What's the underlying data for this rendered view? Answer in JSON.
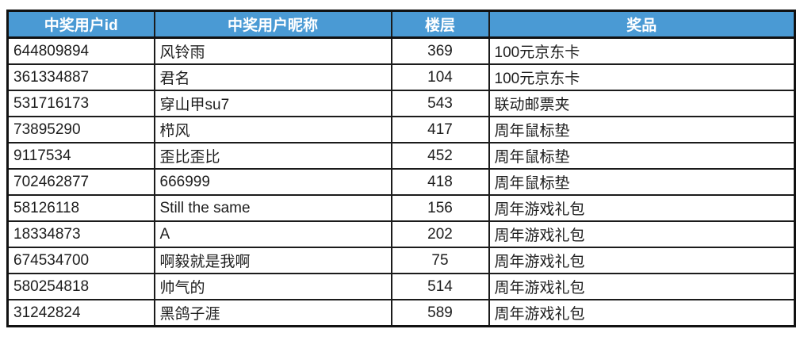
{
  "chart_data": {
    "type": "table",
    "title": "",
    "headers": [
      "中奖用户id",
      "中奖用户昵称",
      "楼层",
      "奖品"
    ],
    "rows": [
      [
        "644809894",
        "风铃雨",
        "369",
        "100元京东卡"
      ],
      [
        "361334887",
        "君名",
        "104",
        "100元京东卡"
      ],
      [
        "531716173",
        "穿山甲su7",
        "543",
        "联动邮票夹"
      ],
      [
        "73895290",
        "栉风",
        "417",
        "周年鼠标垫"
      ],
      [
        "9117534",
        "歪比歪比",
        "452",
        "周年鼠标垫"
      ],
      [
        "702462877",
        "666999",
        "418",
        "周年鼠标垫"
      ],
      [
        "58126118",
        "Still the same",
        "156",
        "周年游戏礼包"
      ],
      [
        "18334873",
        "A",
        "202",
        "周年游戏礼包"
      ],
      [
        "674534700",
        "啊毅就是我啊",
        "75",
        "周年游戏礼包"
      ],
      [
        "580254818",
        "帅气的",
        "514",
        "周年游戏礼包"
      ],
      [
        "31242824",
        "黑鸽子涯",
        "589",
        "周年游戏礼包"
      ]
    ],
    "colors": {
      "header_bg": "#4a9ad4",
      "header_text": "#ffffff",
      "grid_border": "#1b1b1b",
      "row_text": "#1d1d1d",
      "row_bg": "#ffffff"
    },
    "layout": {
      "column_alignments": [
        "left",
        "left",
        "center",
        "left"
      ],
      "grid": true
    }
  }
}
